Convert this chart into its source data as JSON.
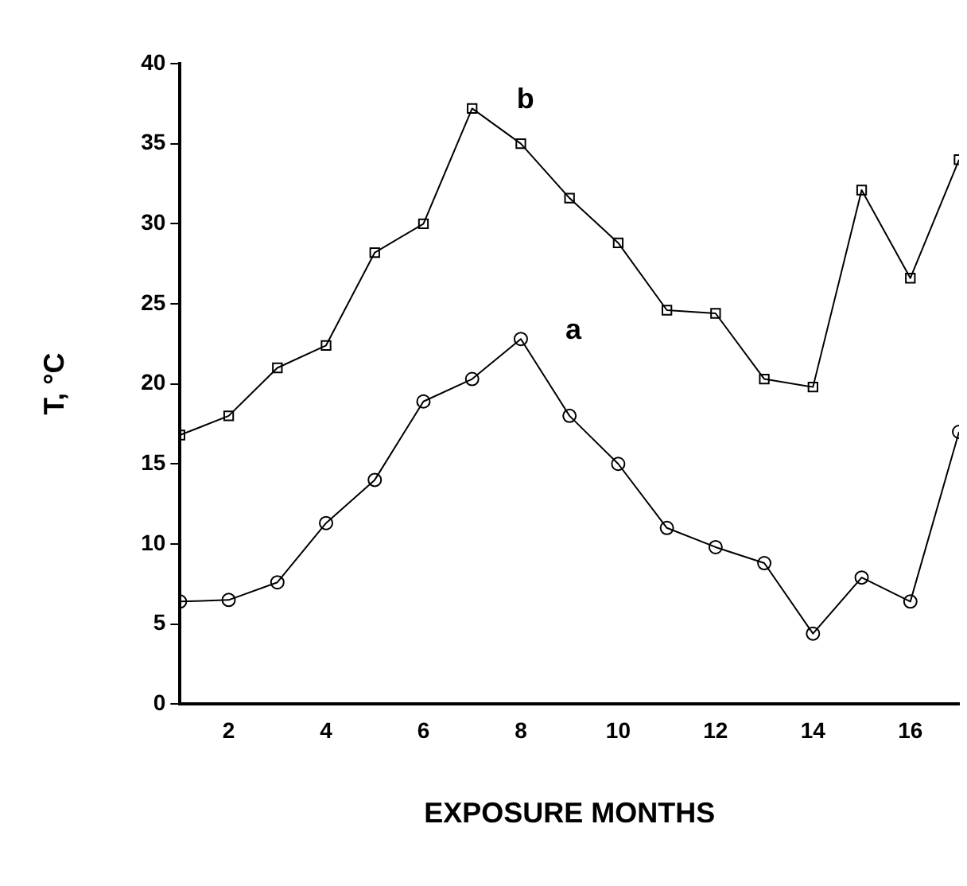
{
  "chart_data": {
    "type": "line",
    "xlabel": "EXPOSURE MONTHS",
    "ylabel": "T, °C",
    "x": [
      1,
      2,
      3,
      4,
      5,
      6,
      7,
      8,
      9,
      10,
      11,
      12,
      13,
      14,
      15,
      16,
      17
    ],
    "series": [
      {
        "name": "b",
        "color": "#000000",
        "marker": "square",
        "values": [
          16.8,
          18,
          21,
          22.4,
          28.2,
          30,
          37.2,
          35,
          31.6,
          28.8,
          24.6,
          24.4,
          20.3,
          19.8,
          32.1,
          26.6,
          34
        ]
      },
      {
        "name": "a",
        "color": "#000000",
        "marker": "circle",
        "values": [
          6.4,
          6.5,
          7.6,
          11.3,
          14,
          18.9,
          20.3,
          22.8,
          18,
          15,
          11,
          9.8,
          8.8,
          4.4,
          7.9,
          6.4,
          17
        ]
      }
    ],
    "xlim": [
      1,
      17
    ],
    "xticks": [
      2,
      4,
      6,
      8,
      10,
      12,
      14,
      16
    ],
    "ylim": [
      0,
      40
    ],
    "yticks": [
      0,
      5,
      10,
      15,
      20,
      25,
      30,
      35,
      40
    ],
    "grid": false,
    "legend": false,
    "line_style": "solid"
  }
}
